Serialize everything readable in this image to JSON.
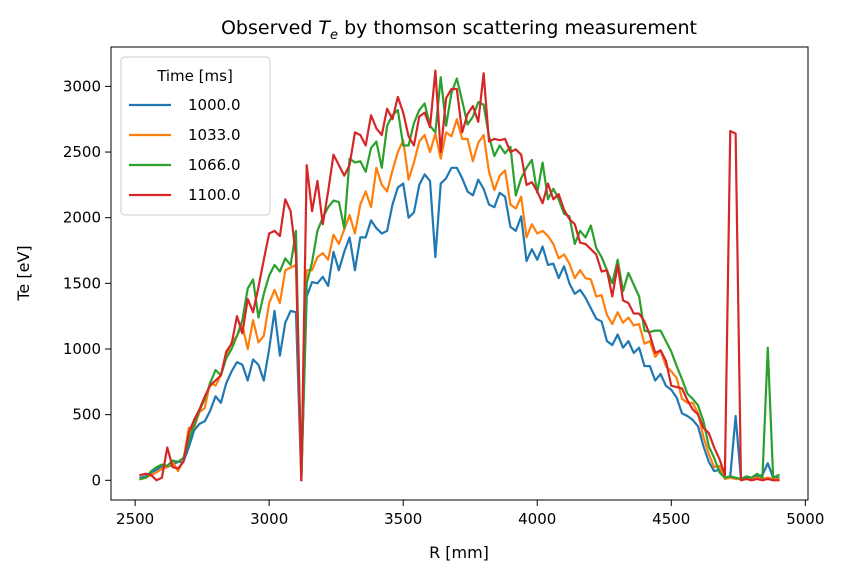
{
  "chart_data": {
    "type": "line",
    "title_main": "Observed ",
    "title_var": "T",
    "title_sub": "e",
    "title_rest": " by thomson scattering measurement",
    "xlabel": "R [mm]",
    "ylabel": "Te [eV]",
    "xlim": [
      2410,
      5010
    ],
    "ylim": [
      -150,
      3300
    ],
    "xticks": [
      2500,
      3000,
      3500,
      4000,
      4500,
      5000
    ],
    "yticks": [
      0,
      500,
      1000,
      1500,
      2000,
      2500,
      3000
    ],
    "legend": {
      "title": "Time [ms]",
      "position": "top-left"
    },
    "grid": false,
    "x": [
      2520,
      2540,
      2560,
      2580,
      2600,
      2620,
      2640,
      2660,
      2680,
      2700,
      2720,
      2740,
      2760,
      2780,
      2800,
      2820,
      2840,
      2860,
      2880,
      2900,
      2920,
      2940,
      2960,
      2980,
      3000,
      3020,
      3040,
      3060,
      3080,
      3100,
      3120,
      3140,
      3160,
      3180,
      3200,
      3220,
      3240,
      3260,
      3280,
      3300,
      3320,
      3340,
      3360,
      3380,
      3400,
      3420,
      3440,
      3460,
      3480,
      3500,
      3520,
      3540,
      3560,
      3580,
      3600,
      3620,
      3640,
      3660,
      3680,
      3700,
      3720,
      3740,
      3760,
      3780,
      3800,
      3820,
      3840,
      3860,
      3880,
      3900,
      3920,
      3940,
      3960,
      3980,
      4000,
      4020,
      4040,
      4060,
      4080,
      4100,
      4120,
      4140,
      4160,
      4180,
      4200,
      4220,
      4240,
      4260,
      4280,
      4300,
      4320,
      4340,
      4360,
      4380,
      4400,
      4420,
      4440,
      4460,
      4480,
      4500,
      4520,
      4540,
      4560,
      4580,
      4600,
      4620,
      4640,
      4660,
      4680,
      4700,
      4720,
      4740,
      4760,
      4780,
      4800,
      4820,
      4840,
      4860,
      4880,
      4900
    ],
    "series": [
      {
        "name": "1000.0",
        "color": "#1f77b4",
        "values": [
          20,
          30,
          60,
          80,
          110,
          100,
          120,
          140,
          140,
          250,
          380,
          430,
          450,
          530,
          640,
          590,
          740,
          830,
          900,
          880,
          760,
          920,
          880,
          760,
          1000,
          1290,
          950,
          1200,
          1290,
          1280,
          0,
          1400,
          1510,
          1500,
          1550,
          1480,
          1740,
          1600,
          1740,
          1850,
          1600,
          1850,
          1850,
          1980,
          1920,
          1880,
          1900,
          2100,
          2230,
          2260,
          2000,
          2040,
          2250,
          2330,
          2280,
          1700,
          2260,
          2300,
          2380,
          2380,
          2300,
          2200,
          2170,
          2290,
          2220,
          2100,
          2080,
          2190,
          2160,
          1930,
          1900,
          2010,
          1670,
          1760,
          1680,
          1780,
          1640,
          1650,
          1540,
          1630,
          1500,
          1420,
          1450,
          1390,
          1310,
          1230,
          1210,
          1060,
          1030,
          1110,
          1010,
          1060,
          970,
          1010,
          870,
          870,
          760,
          810,
          720,
          690,
          630,
          510,
          490,
          460,
          410,
          260,
          140,
          70,
          80,
          20,
          30,
          490,
          10,
          20,
          10,
          30,
          40,
          130,
          20,
          20
        ]
      },
      {
        "name": "1033.0",
        "color": "#ff7f0e",
        "values": [
          10,
          20,
          40,
          60,
          90,
          100,
          140,
          70,
          150,
          400,
          400,
          520,
          550,
          750,
          720,
          800,
          950,
          1050,
          1100,
          1180,
          1000,
          1220,
          1050,
          1100,
          1350,
          1450,
          1350,
          1600,
          1620,
          1640,
          0,
          1600,
          1600,
          1700,
          1730,
          1680,
          1870,
          1800,
          1910,
          2020,
          1880,
          2100,
          2200,
          2080,
          2380,
          2250,
          2200,
          2360,
          2500,
          2590,
          2290,
          2420,
          2580,
          2630,
          2500,
          2640,
          2450,
          2650,
          2620,
          2750,
          2600,
          2600,
          2430,
          2570,
          2630,
          2350,
          2210,
          2320,
          2360,
          2100,
          2070,
          2160,
          1850,
          1950,
          1880,
          1900,
          1860,
          1800,
          1690,
          1720,
          1650,
          1540,
          1600,
          1540,
          1530,
          1400,
          1410,
          1260,
          1190,
          1280,
          1200,
          1240,
          1180,
          1190,
          1040,
          1060,
          940,
          990,
          870,
          830,
          780,
          620,
          590,
          590,
          510,
          330,
          200,
          100,
          110,
          10,
          20,
          10,
          10,
          10,
          10,
          20,
          10,
          20,
          10,
          10
        ]
      },
      {
        "name": "1066.0",
        "color": "#2ca02c",
        "values": [
          10,
          20,
          70,
          100,
          120,
          110,
          150,
          140,
          170,
          300,
          420,
          530,
          620,
          740,
          840,
          800,
          930,
          1000,
          1100,
          1220,
          1460,
          1530,
          1240,
          1420,
          1560,
          1640,
          1590,
          1690,
          1640,
          1900,
          0,
          1500,
          1660,
          1900,
          2000,
          2080,
          2130,
          2120,
          1920,
          2450,
          2420,
          2430,
          2350,
          2530,
          2580,
          2380,
          2700,
          2780,
          2820,
          2550,
          2550,
          2720,
          2820,
          2870,
          2700,
          2650,
          3070,
          2700,
          2950,
          3060,
          2890,
          2710,
          2770,
          2880,
          2860,
          2620,
          2470,
          2550,
          2490,
          2540,
          2170,
          2300,
          2380,
          2440,
          2190,
          2420,
          2140,
          2220,
          2140,
          2030,
          2010,
          1800,
          1900,
          1850,
          1940,
          1770,
          1700,
          1600,
          1500,
          1680,
          1440,
          1580,
          1490,
          1400,
          1140,
          1130,
          1140,
          1140,
          1060,
          980,
          870,
          770,
          660,
          620,
          570,
          450,
          260,
          170,
          60,
          20,
          30,
          20,
          10,
          30,
          20,
          50,
          20,
          1010,
          20,
          40
        ]
      },
      {
        "name": "1100.0",
        "color": "#d62728",
        "values": [
          40,
          50,
          40,
          0,
          20,
          250,
          100,
          90,
          140,
          360,
          460,
          540,
          640,
          720,
          760,
          800,
          980,
          1040,
          1250,
          1120,
          1380,
          1280,
          1470,
          1680,
          1880,
          1900,
          1860,
          2140,
          2050,
          1710,
          0,
          2400,
          2050,
          2280,
          1950,
          2200,
          2480,
          2400,
          2320,
          2400,
          2650,
          2630,
          2550,
          2780,
          2680,
          2630,
          2830,
          2750,
          2920,
          2800,
          2620,
          2550,
          2770,
          2800,
          2690,
          3120,
          2500,
          2910,
          2980,
          2980,
          2650,
          2790,
          2850,
          2730,
          3100,
          2580,
          2600,
          2590,
          2600,
          2500,
          2520,
          2480,
          2250,
          2270,
          2200,
          2110,
          2260,
          2140,
          2180,
          2060,
          1990,
          1950,
          1810,
          1800,
          1760,
          1720,
          1590,
          1600,
          1400,
          1640,
          1370,
          1350,
          1270,
          1270,
          1210,
          1110,
          970,
          990,
          910,
          720,
          710,
          700,
          610,
          540,
          500,
          400,
          360,
          250,
          160,
          40,
          2660,
          2640,
          0,
          10,
          0,
          10,
          0,
          10,
          0,
          0
        ]
      }
    ]
  }
}
